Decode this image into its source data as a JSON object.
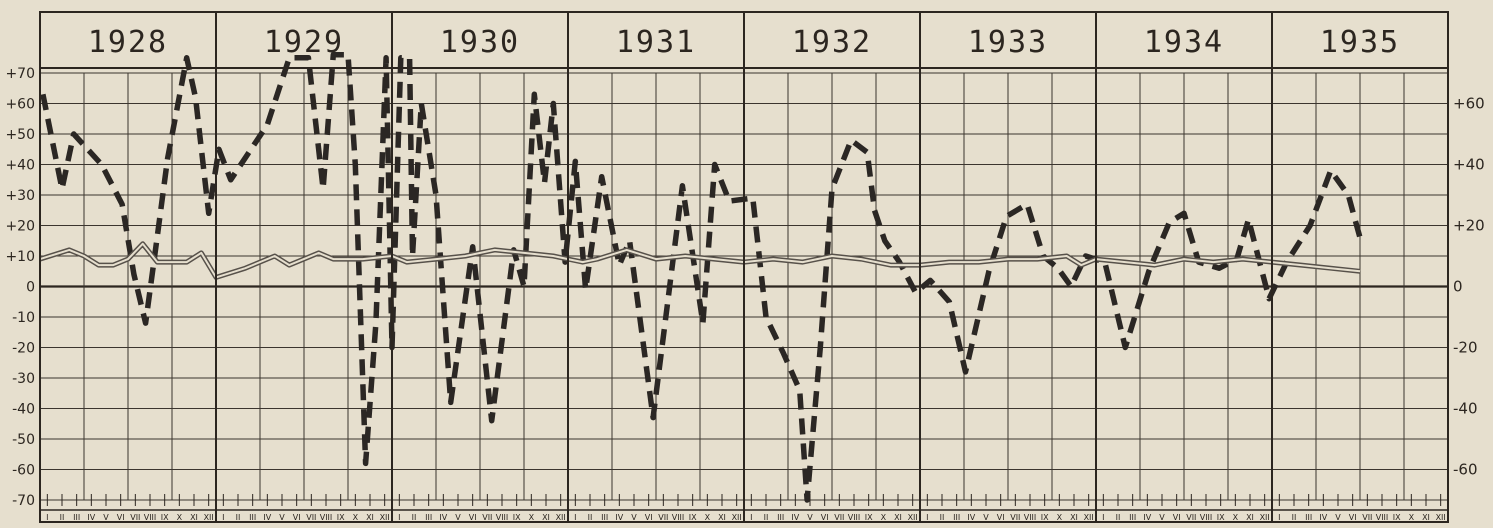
{
  "chart_data": {
    "type": "line",
    "years": [
      "1928",
      "1929",
      "1930",
      "1931",
      "1932",
      "1933",
      "1934",
      "1935"
    ],
    "months_per_year": [
      "I",
      "II",
      "III",
      "IV",
      "V",
      "VI",
      "VII",
      "VIII",
      "IX",
      "X",
      "XI",
      "XII"
    ],
    "y_left": {
      "ylim": [
        -70,
        70
      ],
      "ticks": [
        "+70",
        "+60",
        "+50",
        "+40",
        "+30",
        "+20",
        "+10",
        "0",
        "-10",
        "-20",
        "-30",
        "-40",
        "-50",
        "-60",
        "-70"
      ]
    },
    "y_right": {
      "ylim": [
        -70,
        70
      ],
      "ticks": [
        "+60",
        "+40",
        "+20",
        "0",
        "-20",
        "-40",
        "-60"
      ],
      "values": [
        60,
        40,
        20,
        0,
        -20,
        -40,
        -60
      ]
    },
    "grid": true,
    "series": [
      {
        "style": "dashed-thick",
        "color": "#2b2724",
        "points": [
          [
            0.2,
            63
          ],
          [
            1.5,
            32
          ],
          [
            2.3,
            50
          ],
          [
            4.2,
            40
          ],
          [
            5.6,
            27
          ],
          [
            6.4,
            4
          ],
          [
            7.2,
            -12
          ],
          [
            7.9,
            13
          ],
          [
            8.7,
            42
          ],
          [
            10.0,
            75
          ],
          [
            10.6,
            62
          ],
          [
            11.5,
            24
          ],
          [
            12.2,
            45
          ],
          [
            13.0,
            35
          ],
          [
            15.5,
            53
          ],
          [
            17.0,
            75
          ],
          [
            18.3,
            75
          ],
          [
            19.3,
            32
          ],
          [
            20.0,
            76
          ],
          [
            21.0,
            76
          ],
          [
            21.5,
            40
          ],
          [
            22.2,
            -58
          ],
          [
            22.9,
            -12
          ],
          [
            23.6,
            75
          ],
          [
            24.0,
            -20
          ],
          [
            24.6,
            75
          ],
          [
            25.2,
            75
          ],
          [
            25.4,
            10
          ],
          [
            26.0,
            60
          ],
          [
            27.0,
            30
          ],
          [
            28.0,
            -38
          ],
          [
            29.5,
            13
          ],
          [
            30.8,
            -44
          ],
          [
            32.3,
            12
          ],
          [
            33.0,
            0
          ],
          [
            33.7,
            63
          ],
          [
            34.4,
            34
          ],
          [
            35.0,
            60
          ],
          [
            35.8,
            8
          ],
          [
            36.5,
            41
          ],
          [
            37.2,
            -1
          ],
          [
            38.3,
            36
          ],
          [
            39.5,
            7
          ],
          [
            40.2,
            15
          ],
          [
            41.8,
            -43
          ],
          [
            43.8,
            33
          ],
          [
            45.2,
            -12
          ],
          [
            46.0,
            40
          ],
          [
            47.0,
            28
          ],
          [
            48.6,
            29
          ],
          [
            49.5,
            -10
          ],
          [
            50.7,
            -22
          ],
          [
            51.8,
            -34
          ],
          [
            52.3,
            -70
          ],
          [
            53.2,
            -20
          ],
          [
            54.0,
            32
          ],
          [
            55.3,
            48
          ],
          [
            56.4,
            44
          ],
          [
            56.9,
            25
          ],
          [
            57.6,
            15
          ],
          [
            58.6,
            8
          ],
          [
            59.7,
            -2
          ],
          [
            60.7,
            2
          ],
          [
            62.0,
            -5
          ],
          [
            63.1,
            -28
          ],
          [
            64.7,
            5
          ],
          [
            65.9,
            23
          ],
          [
            67.3,
            27
          ],
          [
            68.4,
            10
          ],
          [
            69.4,
            6
          ],
          [
            70.3,
            0
          ],
          [
            71.3,
            10
          ],
          [
            72.6,
            8
          ],
          [
            74.0,
            -20
          ],
          [
            75.6,
            5
          ],
          [
            77.0,
            21
          ],
          [
            78.0,
            24
          ],
          [
            79.0,
            8
          ],
          [
            80.4,
            6
          ],
          [
            81.6,
            9
          ],
          [
            82.4,
            22
          ],
          [
            83.8,
            -4
          ],
          [
            85.0,
            8
          ],
          [
            86.6,
            20
          ],
          [
            88.0,
            38
          ],
          [
            89.2,
            30
          ],
          [
            90.0,
            16
          ]
        ]
      },
      {
        "style": "double-line",
        "color": "#57514a",
        "points": [
          [
            0,
            9
          ],
          [
            2,
            12
          ],
          [
            3,
            10
          ],
          [
            4,
            7
          ],
          [
            5,
            7
          ],
          [
            6,
            9
          ],
          [
            7,
            14
          ],
          [
            8,
            8
          ],
          [
            9,
            8
          ],
          [
            10,
            8
          ],
          [
            11,
            11
          ],
          [
            12,
            3
          ],
          [
            14,
            6
          ],
          [
            16,
            10
          ],
          [
            17,
            7
          ],
          [
            19,
            11
          ],
          [
            20,
            9
          ],
          [
            22,
            9
          ],
          [
            24,
            10
          ],
          [
            25,
            8
          ],
          [
            27,
            9
          ],
          [
            29,
            10
          ],
          [
            31,
            12
          ],
          [
            33,
            11
          ],
          [
            35,
            10
          ],
          [
            36,
            9
          ],
          [
            37,
            8
          ],
          [
            38,
            9
          ],
          [
            40,
            12
          ],
          [
            42,
            9
          ],
          [
            44,
            10
          ],
          [
            46,
            9
          ],
          [
            48,
            8
          ],
          [
            50,
            9
          ],
          [
            52,
            8
          ],
          [
            54,
            10
          ],
          [
            56,
            9
          ],
          [
            58,
            7
          ],
          [
            60,
            7
          ],
          [
            62,
            8
          ],
          [
            64,
            8
          ],
          [
            66,
            9
          ],
          [
            68,
            9
          ],
          [
            70,
            10
          ],
          [
            71,
            7
          ],
          [
            72,
            9
          ],
          [
            74,
            8
          ],
          [
            76,
            7
          ],
          [
            78,
            9
          ],
          [
            80,
            8
          ],
          [
            82,
            9
          ],
          [
            84,
            8
          ],
          [
            86,
            7
          ],
          [
            88,
            6
          ],
          [
            90,
            5
          ]
        ]
      }
    ]
  }
}
